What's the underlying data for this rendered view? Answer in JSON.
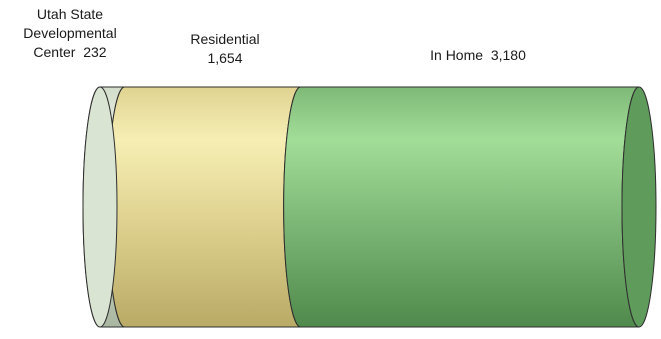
{
  "chart_data": {
    "type": "stacked-cylinder",
    "title": "",
    "segments": [
      {
        "name": "Utah State Developmental Center",
        "value": 232,
        "label_lines": [
          "Utah State",
          "Developmental",
          "Center  232"
        ],
        "colors": {
          "light": "#eef4ea",
          "mid": "#d2dcc9",
          "dark": "#a9b7a2",
          "cap": "#d9e4d2"
        }
      },
      {
        "name": "Residential",
        "value": 1654,
        "label_lines": [
          "Residential",
          "1,654"
        ],
        "colors": {
          "light": "#f6eeb4",
          "mid": "#e0d391",
          "dark": "#b9ab66",
          "cap": "#d8cb84"
        }
      },
      {
        "name": "In Home",
        "value": 3180,
        "label_lines": [
          "In Home  3,180"
        ],
        "colors": {
          "light": "#a2dd98",
          "mid": "#7fb978",
          "dark": "#4f8a4c",
          "cap": "#5f9b5b"
        }
      }
    ]
  }
}
